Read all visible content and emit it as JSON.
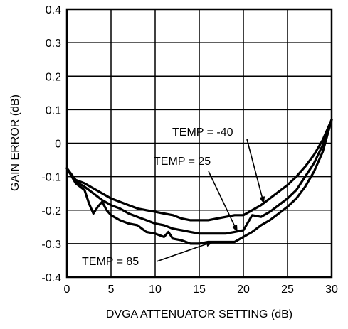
{
  "chart_data": {
    "type": "line",
    "title": "",
    "xlabel": "DVGA ATTENUATOR SETTING (dB)",
    "ylabel": "GAIN ERROR (dB)",
    "xlim": [
      0,
      30
    ],
    "ylim": [
      -0.4,
      0.4
    ],
    "grid": true,
    "x_ticks": [
      "0",
      "5",
      "10",
      "15",
      "20",
      "25",
      "30"
    ],
    "y_ticks": [
      "0.4",
      "0.3",
      "0.2",
      "0.1",
      "0",
      "-0.1",
      "-0.2",
      "-0.3",
      "-0.4"
    ],
    "series": [
      {
        "name": "TEMP = -40",
        "x": [
          0,
          1,
          2,
          3,
          4,
          5,
          6,
          7,
          8,
          9,
          10,
          11,
          12,
          13,
          14,
          15,
          16,
          17,
          18,
          19,
          20,
          21,
          22,
          23,
          24,
          25,
          26,
          27,
          28,
          29,
          30
        ],
        "y": [
          -0.075,
          -0.11,
          -0.12,
          -0.135,
          -0.15,
          -0.165,
          -0.175,
          -0.185,
          -0.195,
          -0.2,
          -0.205,
          -0.21,
          -0.215,
          -0.225,
          -0.23,
          -0.23,
          -0.23,
          -0.225,
          -0.22,
          -0.215,
          -0.215,
          -0.2,
          -0.185,
          -0.165,
          -0.145,
          -0.125,
          -0.1,
          -0.07,
          -0.035,
          0.01,
          0.07
        ]
      },
      {
        "name": "TEMP = 25",
        "x": [
          0,
          1,
          2,
          3,
          4,
          5,
          6,
          7,
          8,
          9,
          10,
          11,
          12,
          13,
          14,
          15,
          16,
          17,
          18,
          19,
          20,
          21,
          22,
          23,
          24,
          25,
          26,
          27,
          28,
          29,
          30
        ],
        "y": [
          -0.075,
          -0.115,
          -0.13,
          -0.15,
          -0.17,
          -0.185,
          -0.195,
          -0.21,
          -0.22,
          -0.23,
          -0.24,
          -0.245,
          -0.255,
          -0.26,
          -0.265,
          -0.27,
          -0.27,
          -0.27,
          -0.27,
          -0.265,
          -0.26,
          -0.215,
          -0.22,
          -0.205,
          -0.185,
          -0.165,
          -0.14,
          -0.1,
          -0.06,
          -0.005,
          0.07
        ]
      },
      {
        "name": "TEMP = 85",
        "x": [
          0,
          1,
          2,
          2.5,
          3,
          3.5,
          4,
          4.5,
          5,
          6,
          7,
          8,
          9,
          10,
          11,
          11.5,
          12,
          13,
          14,
          15,
          16,
          17,
          18,
          19,
          20,
          21,
          22,
          23,
          24,
          25,
          26,
          27,
          28,
          29,
          30
        ],
        "y": [
          -0.075,
          -0.12,
          -0.14,
          -0.18,
          -0.21,
          -0.19,
          -0.175,
          -0.2,
          -0.215,
          -0.23,
          -0.24,
          -0.245,
          -0.265,
          -0.27,
          -0.28,
          -0.265,
          -0.285,
          -0.29,
          -0.3,
          -0.3,
          -0.295,
          -0.295,
          -0.295,
          -0.295,
          -0.28,
          -0.265,
          -0.245,
          -0.23,
          -0.21,
          -0.19,
          -0.165,
          -0.13,
          -0.085,
          -0.025,
          0.07
        ]
      }
    ],
    "annotations": [
      {
        "text": "TEMP = -40",
        "series": "TEMP = -40"
      },
      {
        "text": "TEMP = 25",
        "series": "TEMP = 25"
      },
      {
        "text": "TEMP = 85",
        "series": "TEMP = 85"
      }
    ]
  }
}
